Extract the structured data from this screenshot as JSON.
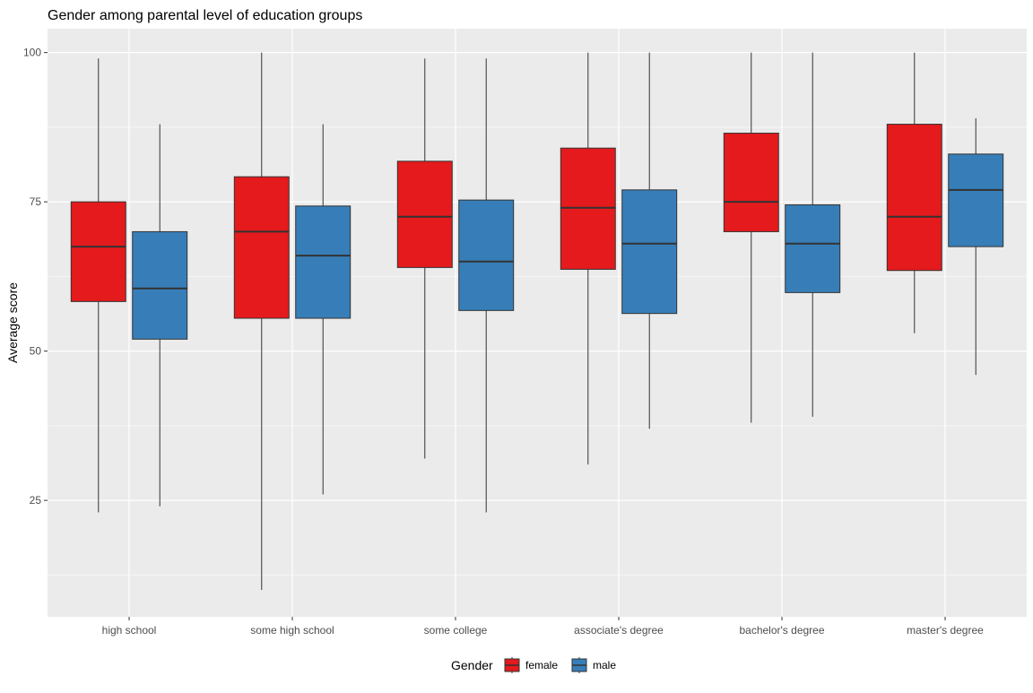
{
  "chart_data": {
    "type": "box",
    "title": "Gender among parental level of education groups",
    "xlabel": "",
    "ylabel": "Average score",
    "ylim": [
      5.5,
      104
    ],
    "yticks": [
      25,
      50,
      75,
      100
    ],
    "grid": true,
    "legend_position": "bottom",
    "legend_title": "Gender",
    "categories": [
      "high school",
      "some high school",
      "some college",
      "associate's degree",
      "bachelor's degree",
      "master's degree"
    ],
    "series": [
      {
        "name": "female",
        "color": "#E41A1C",
        "boxes": [
          {
            "min": 23,
            "q1": 58.3,
            "median": 67.5,
            "q3": 75,
            "max": 99
          },
          {
            "min": 10,
            "q1": 55.5,
            "median": 70,
            "q3": 79.2,
            "max": 100
          },
          {
            "min": 32,
            "q1": 64,
            "median": 72.5,
            "q3": 81.8,
            "max": 99
          },
          {
            "min": 31,
            "q1": 63.7,
            "median": 74,
            "q3": 84,
            "max": 100
          },
          {
            "min": 38,
            "q1": 70,
            "median": 75,
            "q3": 86.5,
            "max": 100
          },
          {
            "min": 53,
            "q1": 63.5,
            "median": 72.5,
            "q3": 88,
            "max": 100
          }
        ]
      },
      {
        "name": "male",
        "color": "#377EB8",
        "boxes": [
          {
            "min": 24,
            "q1": 52,
            "median": 60.5,
            "q3": 70,
            "max": 88
          },
          {
            "min": 26,
            "q1": 55.5,
            "median": 66,
            "q3": 74.3,
            "max": 88
          },
          {
            "min": 23,
            "q1": 56.8,
            "median": 65,
            "q3": 75.3,
            "max": 99
          },
          {
            "min": 37,
            "q1": 56.3,
            "median": 68,
            "q3": 77,
            "max": 100
          },
          {
            "min": 39,
            "q1": 59.8,
            "median": 68,
            "q3": 74.5,
            "max": 100
          },
          {
            "min": 46,
            "q1": 67.5,
            "median": 77,
            "q3": 83,
            "max": 89
          }
        ]
      }
    ]
  }
}
